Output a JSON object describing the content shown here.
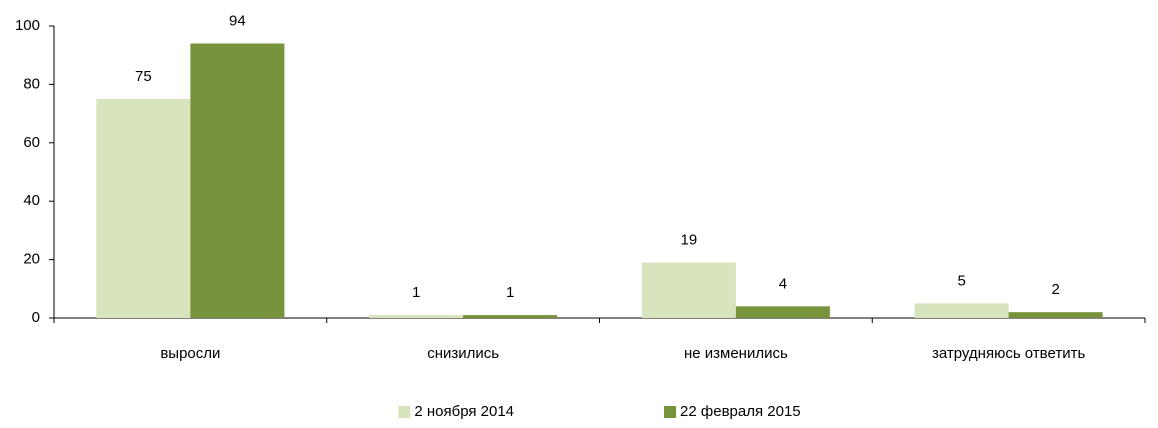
{
  "chart_data": {
    "type": "bar",
    "categories": [
      "выросли",
      "снизились",
      "не изменились",
      "затрудняюсь ответить"
    ],
    "series": [
      {
        "name": "2 ноября 2014",
        "color": "#d7e4bd",
        "values": [
          75,
          1,
          19,
          5
        ]
      },
      {
        "name": "22 февраля 2015",
        "color": "#77933c",
        "values": [
          94,
          1,
          4,
          2
        ]
      }
    ],
    "ylim": [
      0,
      100
    ],
    "yticks": [
      0,
      20,
      40,
      60,
      80,
      100
    ],
    "grid": false,
    "legend": "bottom"
  }
}
